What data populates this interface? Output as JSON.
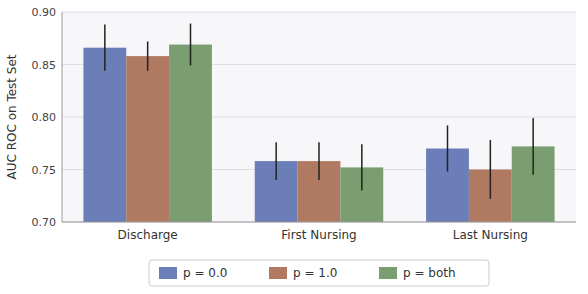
{
  "chart_data": {
    "type": "bar",
    "categories": [
      "Discharge",
      "First Nursing",
      "Last Nursing"
    ],
    "series": [
      {
        "name": "p = 0.0",
        "color": "#6b7eb8",
        "values": [
          0.866,
          0.758,
          0.77
        ],
        "errors": [
          0.022,
          0.018,
          0.022
        ]
      },
      {
        "name": "p = 1.0",
        "color": "#b07a62",
        "values": [
          0.858,
          0.758,
          0.75
        ],
        "errors": [
          0.014,
          0.018,
          0.028
        ]
      },
      {
        "name": "p = both",
        "color": "#7a9e70",
        "values": [
          0.869,
          0.752,
          0.772
        ],
        "errors": [
          0.02,
          0.022,
          0.027
        ]
      }
    ],
    "ylabel": "AUC ROC on Test Set",
    "ylim": [
      0.7,
      0.9
    ],
    "yticks": [
      {
        "value": 0.7,
        "label": "0.70"
      },
      0.75,
      {
        "value": 0.8,
        "label": "0.80"
      },
      0.85,
      {
        "value": 0.9,
        "label": "0.90"
      }
    ],
    "grid": true,
    "legend": "bottom"
  }
}
